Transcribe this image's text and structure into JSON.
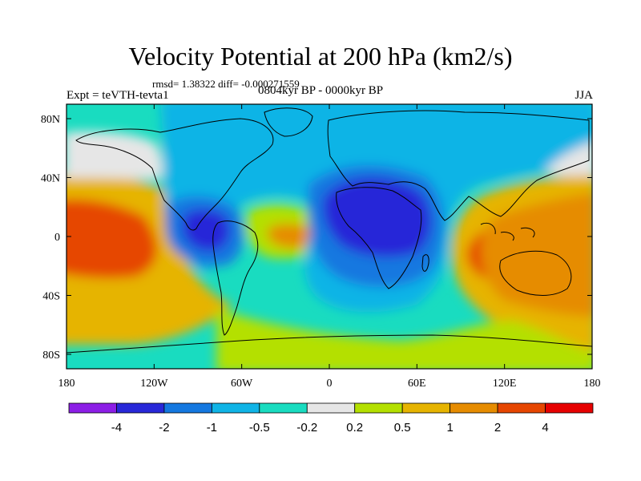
{
  "header": {
    "title": "Velocity Potential at 200 hPa (km2/s)",
    "stats": "rmsd= 1.38322 diff= -0.000271559",
    "experiment": "Expt = teVTH-tevta1",
    "period": "0804kyr BP - 0000kyr BP",
    "season": "JJA"
  },
  "axes": {
    "lon_ticks": [
      "180",
      "120W",
      "60W",
      "0",
      "60E",
      "120E",
      "180"
    ],
    "lat_ticks": [
      "80N",
      "40N",
      "0",
      "40S",
      "80S"
    ]
  },
  "colorbar": {
    "colors": [
      "#8c1ee6",
      "#2828d8",
      "#1478e0",
      "#10b4e6",
      "#19dcc0",
      "#e6e6e6",
      "#b4e000",
      "#e6b400",
      "#e68c00",
      "#e64600",
      "#e60000"
    ],
    "labels": [
      "-4",
      "-2",
      "-1",
      "-0.5",
      "-0.2",
      "0.2",
      "0.5",
      "1",
      "2",
      "4"
    ]
  },
  "map": {
    "fill_colors": {
      "very_strong_negative": "#2828d8",
      "strong_negative": "#1478e0",
      "negative": "#10b4e6",
      "weak_negative": "#19dcc0",
      "near_zero": "#e6e6e6",
      "weak_positive": "#b4e000",
      "positive": "#e6b400",
      "strong_positive": "#e68c00",
      "very_strong_positive": "#e64600"
    },
    "coastline_color": "#000000"
  }
}
